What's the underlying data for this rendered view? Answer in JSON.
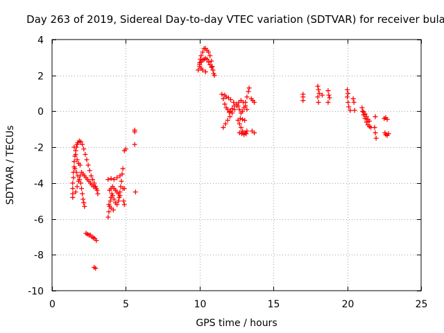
{
  "chart_data": {
    "type": "scatter",
    "title": "Day 263 of 2019, Sidereal Day-to-day VTEC variation (SDTVAR) for receiver bula",
    "xlabel": "GPS time / hours",
    "ylabel": "SDTVAR / TECUs",
    "xlim": [
      0,
      25
    ],
    "ylim": [
      -10,
      4
    ],
    "xticks": [
      0,
      5,
      10,
      15,
      20,
      25
    ],
    "yticks": [
      -10,
      -8,
      -6,
      -4,
      -2,
      0,
      2,
      4
    ],
    "xtick_labels": [
      "0",
      "5",
      "10",
      "15",
      "20",
      "25"
    ],
    "ytick_labels": [
      "-10",
      "-8",
      "-6",
      "-4",
      "-2",
      "0",
      "2",
      "4"
    ],
    "grid": true,
    "marker": "plus",
    "color": "#ff0000",
    "series": [
      {
        "name": "SDTVAR",
        "points": [
          [
            1.4,
            -4.8
          ],
          [
            1.4,
            -4.6
          ],
          [
            1.4,
            -4.3
          ],
          [
            1.4,
            -4.0
          ],
          [
            1.45,
            -3.7
          ],
          [
            1.45,
            -3.4
          ],
          [
            1.5,
            -3.1
          ],
          [
            1.5,
            -2.8
          ],
          [
            1.55,
            -2.5
          ],
          [
            1.6,
            -2.2
          ],
          [
            1.65,
            -2.0
          ],
          [
            1.7,
            -1.85
          ],
          [
            1.75,
            -1.75
          ],
          [
            1.85,
            -1.65
          ],
          [
            1.95,
            -1.7
          ],
          [
            2.05,
            -1.85
          ],
          [
            2.15,
            -2.1
          ],
          [
            2.25,
            -2.4
          ],
          [
            2.35,
            -2.7
          ],
          [
            2.45,
            -3.0
          ],
          [
            2.55,
            -3.3
          ],
          [
            2.65,
            -3.6
          ],
          [
            2.75,
            -3.8
          ],
          [
            2.85,
            -4.0
          ],
          [
            2.95,
            -4.2
          ],
          [
            3.05,
            -4.4
          ],
          [
            3.1,
            -4.6
          ],
          [
            1.55,
            -3.2
          ],
          [
            1.65,
            -3.4
          ],
          [
            1.75,
            -3.6
          ],
          [
            1.85,
            -3.8
          ],
          [
            1.95,
            -4.0
          ],
          [
            2.0,
            -4.3
          ],
          [
            2.05,
            -4.6
          ],
          [
            2.1,
            -4.9
          ],
          [
            2.15,
            -5.1
          ],
          [
            2.2,
            -5.3
          ],
          [
            1.6,
            -4.5
          ],
          [
            1.7,
            -4.2
          ],
          [
            1.8,
            -3.9
          ],
          [
            1.9,
            -3.6
          ],
          [
            2.0,
            -3.4
          ],
          [
            2.1,
            -3.5
          ],
          [
            2.2,
            -3.6
          ],
          [
            2.3,
            -3.7
          ],
          [
            2.4,
            -3.8
          ],
          [
            2.5,
            -3.9
          ],
          [
            2.6,
            -4.0
          ],
          [
            2.7,
            -4.1
          ],
          [
            2.8,
            -4.2
          ],
          [
            2.9,
            -4.2
          ],
          [
            3.0,
            -4.3
          ],
          [
            1.5,
            -2.0
          ],
          [
            1.6,
            -2.4
          ],
          [
            1.7,
            -2.7
          ],
          [
            1.8,
            -2.9
          ],
          [
            1.9,
            -3.0
          ],
          [
            2.3,
            -6.8
          ],
          [
            2.4,
            -6.85
          ],
          [
            2.5,
            -6.9
          ],
          [
            2.6,
            -6.9
          ],
          [
            2.7,
            -7.0
          ],
          [
            2.8,
            -7.05
          ],
          [
            2.9,
            -7.1
          ],
          [
            3.0,
            -7.2
          ],
          [
            2.85,
            -8.7
          ],
          [
            2.95,
            -8.75
          ],
          [
            3.8,
            -5.9
          ],
          [
            3.85,
            -5.6
          ],
          [
            3.9,
            -5.3
          ],
          [
            3.95,
            -5.0
          ],
          [
            4.0,
            -4.8
          ],
          [
            4.05,
            -4.6
          ],
          [
            4.1,
            -4.7
          ],
          [
            4.2,
            -4.9
          ],
          [
            4.3,
            -5.1
          ],
          [
            4.4,
            -5.2
          ],
          [
            4.5,
            -5.0
          ],
          [
            4.55,
            -4.8
          ],
          [
            4.6,
            -4.5
          ],
          [
            4.65,
            -4.2
          ],
          [
            4.7,
            -3.9
          ],
          [
            4.75,
            -3.5
          ],
          [
            4.8,
            -3.2
          ],
          [
            3.9,
            -4.4
          ],
          [
            4.0,
            -4.3
          ],
          [
            4.1,
            -4.2
          ],
          [
            4.2,
            -4.3
          ],
          [
            4.3,
            -4.4
          ],
          [
            4.4,
            -4.5
          ],
          [
            4.5,
            -4.6
          ],
          [
            4.6,
            -4.7
          ],
          [
            3.8,
            -3.8
          ],
          [
            4.0,
            -3.75
          ],
          [
            4.2,
            -3.8
          ],
          [
            4.4,
            -3.7
          ],
          [
            4.6,
            -3.6
          ],
          [
            3.85,
            -5.2
          ],
          [
            4.0,
            -5.4
          ],
          [
            4.15,
            -5.5
          ],
          [
            4.9,
            -2.2
          ],
          [
            5.0,
            -2.1
          ],
          [
            4.8,
            -4.3
          ],
          [
            4.9,
            -4.3
          ],
          [
            4.85,
            -5.0
          ],
          [
            4.9,
            -5.2
          ],
          [
            5.6,
            -1.05
          ],
          [
            5.6,
            -1.15
          ],
          [
            5.6,
            -1.85
          ],
          [
            5.65,
            -4.5
          ],
          [
            9.9,
            2.3
          ],
          [
            10.0,
            2.5
          ],
          [
            10.0,
            2.7
          ],
          [
            10.05,
            2.9
          ],
          [
            10.1,
            3.1
          ],
          [
            10.2,
            3.3
          ],
          [
            10.3,
            3.5
          ],
          [
            10.4,
            3.5
          ],
          [
            10.5,
            3.4
          ],
          [
            10.6,
            3.3
          ],
          [
            10.7,
            3.1
          ],
          [
            10.8,
            2.8
          ],
          [
            10.85,
            2.5
          ],
          [
            10.9,
            2.3
          ],
          [
            10.95,
            2.1
          ],
          [
            11.0,
            2.0
          ],
          [
            10.0,
            2.6
          ],
          [
            10.1,
            2.75
          ],
          [
            10.2,
            2.85
          ],
          [
            10.3,
            2.9
          ],
          [
            10.4,
            2.95
          ],
          [
            10.5,
            2.9
          ],
          [
            10.6,
            2.75
          ],
          [
            10.7,
            2.6
          ],
          [
            10.8,
            2.45
          ],
          [
            10.1,
            2.4
          ],
          [
            10.2,
            2.3
          ],
          [
            10.4,
            2.2
          ],
          [
            11.5,
            0.95
          ],
          [
            11.6,
            0.7
          ],
          [
            11.7,
            0.4
          ],
          [
            11.8,
            0.2
          ],
          [
            11.9,
            0.1
          ],
          [
            12.0,
            -0.05
          ],
          [
            12.1,
            0.0
          ],
          [
            12.2,
            0.15
          ],
          [
            12.35,
            0.3
          ],
          [
            12.5,
            0.4
          ],
          [
            12.6,
            0.3
          ],
          [
            12.7,
            0.1
          ],
          [
            12.8,
            -0.1
          ],
          [
            12.9,
            0.0
          ],
          [
            13.0,
            0.2
          ],
          [
            13.1,
            0.5
          ],
          [
            13.2,
            0.8
          ],
          [
            13.3,
            1.1
          ],
          [
            13.35,
            1.3
          ],
          [
            11.6,
            -0.9
          ],
          [
            11.75,
            -0.7
          ],
          [
            11.9,
            -0.5
          ],
          [
            12.05,
            -0.3
          ],
          [
            12.2,
            -0.1
          ],
          [
            12.35,
            0.1
          ],
          [
            12.5,
            0.3
          ],
          [
            12.65,
            0.5
          ],
          [
            12.8,
            0.6
          ],
          [
            12.95,
            0.5
          ],
          [
            13.1,
            0.3
          ],
          [
            13.2,
            0.1
          ],
          [
            11.7,
            0.9
          ],
          [
            11.8,
            0.8
          ],
          [
            11.95,
            0.75
          ],
          [
            12.1,
            0.65
          ],
          [
            12.3,
            0.5
          ],
          [
            12.6,
            -0.5
          ],
          [
            12.7,
            -0.7
          ],
          [
            12.8,
            -0.9
          ],
          [
            12.9,
            -1.1
          ],
          [
            13.0,
            -1.2
          ],
          [
            13.1,
            -1.2
          ],
          [
            13.2,
            -1.1
          ],
          [
            12.7,
            -1.2
          ],
          [
            12.85,
            -1.25
          ],
          [
            13.0,
            -1.3
          ],
          [
            13.15,
            -1.25
          ],
          [
            12.75,
            -0.4
          ],
          [
            12.9,
            -0.45
          ],
          [
            13.05,
            -0.5
          ],
          [
            13.5,
            0.7
          ],
          [
            13.6,
            0.6
          ],
          [
            13.7,
            0.5
          ],
          [
            13.55,
            -1.1
          ],
          [
            13.7,
            -1.2
          ],
          [
            17.0,
            0.95
          ],
          [
            17.0,
            0.8
          ],
          [
            17.0,
            0.6
          ],
          [
            18.0,
            1.4
          ],
          [
            18.05,
            1.2
          ],
          [
            18.1,
            1.0
          ],
          [
            18.0,
            0.8
          ],
          [
            18.05,
            0.5
          ],
          [
            18.3,
            0.9
          ],
          [
            18.7,
            1.15
          ],
          [
            18.75,
            0.9
          ],
          [
            18.8,
            0.75
          ],
          [
            18.7,
            0.5
          ],
          [
            20.0,
            1.2
          ],
          [
            20.05,
            1.0
          ],
          [
            20.0,
            0.8
          ],
          [
            20.05,
            0.5
          ],
          [
            20.1,
            0.25
          ],
          [
            20.2,
            0.05
          ],
          [
            20.4,
            0.7
          ],
          [
            20.45,
            0.5
          ],
          [
            20.5,
            0.05
          ],
          [
            21.0,
            0.2
          ],
          [
            21.05,
            0.0
          ],
          [
            21.1,
            -0.2
          ],
          [
            21.2,
            -0.4
          ],
          [
            21.3,
            -0.6
          ],
          [
            21.4,
            -0.75
          ],
          [
            21.5,
            -0.85
          ],
          [
            21.6,
            -0.9
          ],
          [
            21.1,
            -0.05
          ],
          [
            21.2,
            -0.15
          ],
          [
            21.3,
            -0.3
          ],
          [
            21.4,
            -0.45
          ],
          [
            21.5,
            -0.55
          ],
          [
            21.9,
            -0.3
          ],
          [
            21.85,
            -0.9
          ],
          [
            21.9,
            -1.2
          ],
          [
            21.95,
            -1.5
          ],
          [
            22.5,
            -0.4
          ],
          [
            22.6,
            -0.35
          ],
          [
            22.7,
            -0.45
          ],
          [
            22.55,
            -1.2
          ],
          [
            22.6,
            -1.3
          ],
          [
            22.7,
            -1.35
          ],
          [
            22.8,
            -1.25
          ]
        ]
      }
    ]
  }
}
